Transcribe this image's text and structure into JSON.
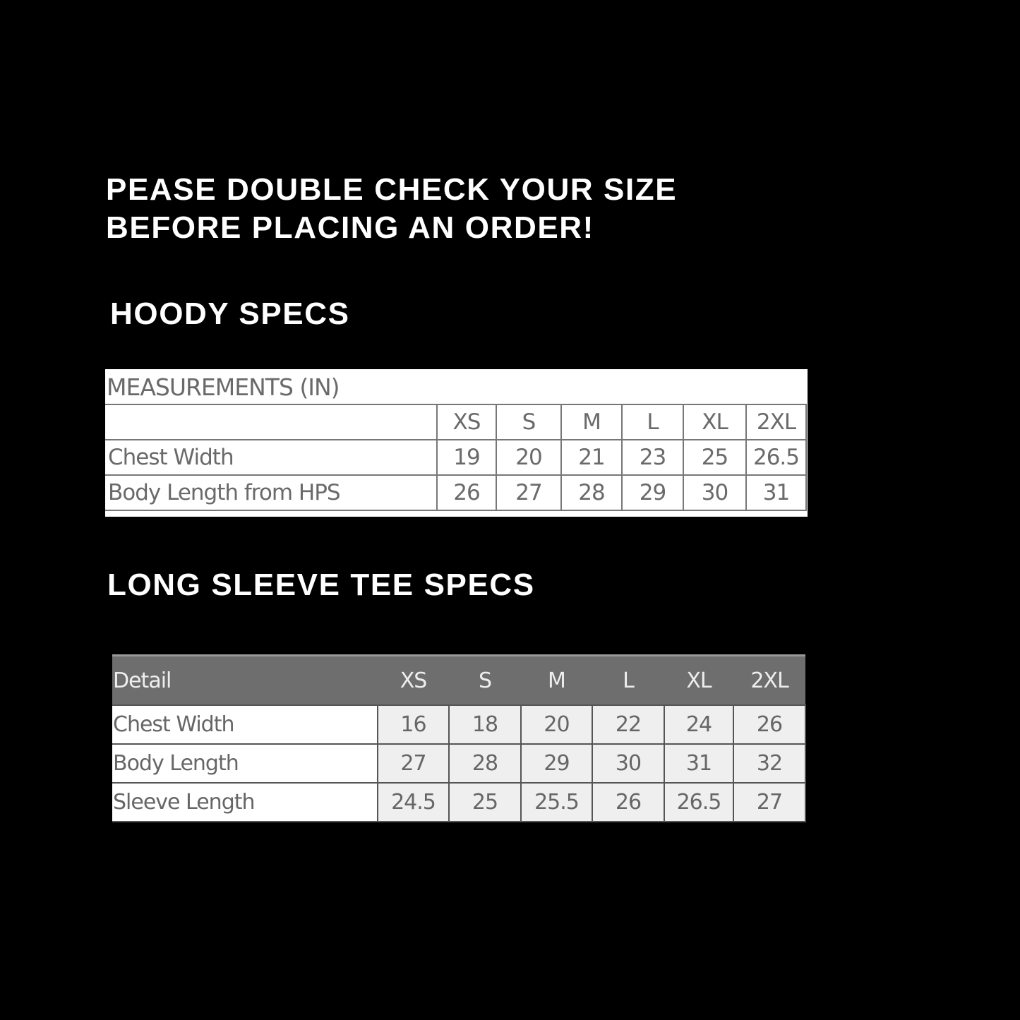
{
  "notice": {
    "line1": "PEASE DOUBLE CHECK YOUR SIZE",
    "line2": "BEFORE PLACING AN ORDER!"
  },
  "hoody": {
    "title": "HOODY SPECS",
    "caption": "MEASUREMENTS (IN)",
    "sizes": [
      "XS",
      "S",
      "M",
      "L",
      "XL",
      "2XL"
    ],
    "rows": [
      {
        "label": "Chest Width",
        "values": [
          "19",
          "20",
          "21",
          "23",
          "25",
          "26.5"
        ]
      },
      {
        "label": "Body Length from HPS",
        "values": [
          "26",
          "27",
          "28",
          "29",
          "30",
          "31"
        ]
      }
    ]
  },
  "long_sleeve": {
    "title": "LONG SLEEVE TEE SPECS",
    "header_label": "Detail",
    "sizes": [
      "XS",
      "S",
      "M",
      "L",
      "XL",
      "2XL"
    ],
    "rows": [
      {
        "label": "Chest Width",
        "values": [
          "16",
          "18",
          "20",
          "22",
          "24",
          "26"
        ]
      },
      {
        "label": "Body Length",
        "values": [
          "27",
          "28",
          "29",
          "30",
          "31",
          "32"
        ]
      },
      {
        "label": "Sleeve Length",
        "values": [
          "24.5",
          "25",
          "25.5",
          "26",
          "26.5",
          "27"
        ]
      }
    ]
  }
}
